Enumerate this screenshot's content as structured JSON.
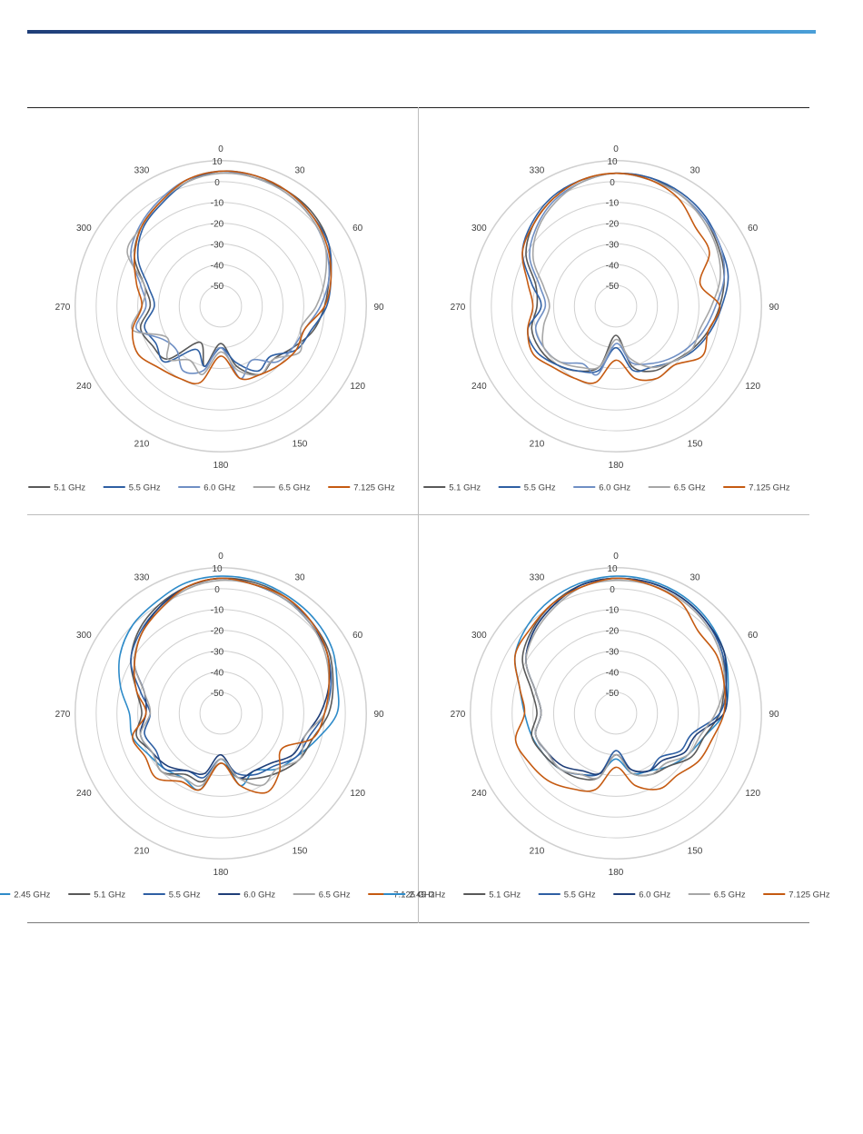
{
  "chart_data": [
    {
      "type": "polar",
      "panel": "top-left",
      "angle_ticks": [
        "0",
        "30",
        "60",
        "90",
        "120",
        "150",
        "180",
        "210",
        "240",
        "270",
        "300",
        "330"
      ],
      "radial_ticks": [
        "10",
        "0",
        "-10",
        "-20",
        "-30",
        "-40",
        "-50"
      ],
      "rlim": [
        -60,
        10
      ],
      "grid": true,
      "legend_position": "bottom",
      "series": [
        {
          "name": "5.1 GHz",
          "color": "#595959",
          "values": [
            5,
            4,
            4,
            3,
            0,
            -6,
            -10,
            -14,
            -20,
            -24,
            -22,
            -30,
            -42,
            -30,
            -40,
            -24,
            -22,
            -20,
            -26,
            -22,
            -12,
            -6,
            -2,
            2
          ]
        },
        {
          "name": "5.5 GHz",
          "color": "#2e5fa3",
          "values": [
            5,
            5,
            4,
            2,
            0,
            -5,
            -9,
            -15,
            -18,
            -26,
            -24,
            -32,
            -40,
            -30,
            -36,
            -22,
            -24,
            -22,
            -28,
            -24,
            -14,
            -7,
            -3,
            2
          ]
        },
        {
          "name": "6.0 GHz",
          "color": "#6f8fc4",
          "values": [
            5,
            4,
            3,
            1,
            -2,
            -6,
            -12,
            -18,
            -20,
            -22,
            -30,
            -24,
            -40,
            -28,
            -24,
            -30,
            -28,
            -18,
            -24,
            -20,
            -10,
            -5,
            -1,
            3
          ]
        },
        {
          "name": "6.5 GHz",
          "color": "#a6a6a6",
          "values": [
            4,
            4,
            3,
            1,
            -2,
            -8,
            -14,
            -20,
            -16,
            -24,
            -22,
            -28,
            -38,
            -26,
            -30,
            -24,
            -30,
            -16,
            -22,
            -22,
            -8,
            -6,
            -2,
            2
          ]
        },
        {
          "name": "7.125 GHz",
          "color": "#c55a11",
          "values": [
            5,
            5,
            4,
            2,
            -1,
            -5,
            -10,
            -18,
            -18,
            -20,
            -22,
            -24,
            -36,
            -22,
            -20,
            -18,
            -14,
            -16,
            -22,
            -18,
            -12,
            -6,
            -2,
            3
          ]
        }
      ]
    },
    {
      "type": "polar",
      "panel": "top-right",
      "angle_ticks": [
        "0",
        "30",
        "60",
        "90",
        "120",
        "150",
        "180",
        "210",
        "240",
        "270",
        "300",
        "330"
      ],
      "radial_ticks": [
        "10",
        "0",
        "-10",
        "-20",
        "-30",
        "-40",
        "-50"
      ],
      "rlim": [
        -60,
        10
      ],
      "grid": true,
      "legend_position": "bottom",
      "series": [
        {
          "name": "5.1 GHz",
          "color": "#595959",
          "values": [
            4,
            4,
            2,
            0,
            -3,
            -6,
            -10,
            -14,
            -18,
            -22,
            -24,
            -30,
            -46,
            -30,
            -24,
            -20,
            -18,
            -18,
            -22,
            -20,
            -10,
            -4,
            0,
            3
          ]
        },
        {
          "name": "5.5 GHz",
          "color": "#2e5fa3",
          "values": [
            4,
            4,
            3,
            1,
            -2,
            -4,
            -9,
            -13,
            -17,
            -22,
            -26,
            -28,
            -40,
            -28,
            -24,
            -20,
            -16,
            -16,
            -24,
            -18,
            -8,
            -3,
            1,
            3
          ]
        },
        {
          "name": "6.0 GHz",
          "color": "#6f8fc4",
          "values": [
            4,
            3,
            2,
            0,
            -2,
            -6,
            -12,
            -16,
            -20,
            -24,
            -28,
            -32,
            -42,
            -26,
            -28,
            -22,
            -20,
            -20,
            -26,
            -22,
            -12,
            -6,
            -1,
            2
          ]
        },
        {
          "name": "6.5 GHz",
          "color": "#a6a6a6",
          "values": [
            4,
            3,
            2,
            -1,
            -4,
            -8,
            -14,
            -18,
            -18,
            -22,
            -26,
            -34,
            -44,
            -30,
            -26,
            -22,
            -20,
            -24,
            -28,
            -24,
            -14,
            -7,
            -2,
            2
          ]
        },
        {
          "name": "7.125 GHz",
          "color": "#c55a11",
          "values": [
            4,
            3,
            0,
            -6,
            -8,
            -18,
            -10,
            -14,
            -12,
            -20,
            -20,
            -24,
            -34,
            -22,
            -20,
            -18,
            -14,
            -16,
            -20,
            -16,
            -8,
            -4,
            0,
            3
          ]
        }
      ]
    },
    {
      "type": "polar",
      "panel": "bottom-left",
      "angle_ticks": [
        "0",
        "30",
        "60",
        "90",
        "120",
        "150",
        "180",
        "210",
        "240",
        "270",
        "300",
        "330"
      ],
      "radial_ticks": [
        "10",
        "0",
        "-10",
        "-20",
        "-30",
        "-40",
        "-50"
      ],
      "rlim": [
        -60,
        10
      ],
      "grid": true,
      "legend_position": "bottom",
      "series": [
        {
          "name": "2.45 GHz",
          "color": "#2e8bc9",
          "values": [
            6,
            6,
            5,
            4,
            2,
            -2,
            -4,
            -12,
            -18,
            -22,
            -28,
            -24,
            -38,
            -22,
            -24,
            -22,
            -20,
            -16,
            -16,
            -10,
            -4,
            0,
            2,
            5
          ]
        },
        {
          "name": "5.1 GHz",
          "color": "#595959",
          "values": [
            5,
            5,
            4,
            2,
            0,
            -4,
            -8,
            -14,
            -16,
            -20,
            -24,
            -28,
            -36,
            -26,
            -26,
            -20,
            -22,
            -18,
            -22,
            -18,
            -10,
            -4,
            0,
            3
          ]
        },
        {
          "name": "5.5 GHz",
          "color": "#2e5fa3",
          "values": [
            5,
            4,
            3,
            2,
            -1,
            -5,
            -10,
            -16,
            -18,
            -24,
            -26,
            -30,
            -38,
            -28,
            -28,
            -22,
            -24,
            -22,
            -26,
            -20,
            -10,
            -5,
            -1,
            3
          ]
        },
        {
          "name": "6.0 GHz",
          "color": "#1f3e78",
          "values": [
            5,
            4,
            3,
            1,
            -1,
            -6,
            -12,
            -18,
            -20,
            -26,
            -28,
            -28,
            -40,
            -30,
            -28,
            -24,
            -22,
            -20,
            -24,
            -22,
            -12,
            -6,
            -1,
            3
          ]
        },
        {
          "name": "6.5 GHz",
          "color": "#a6a6a6",
          "values": [
            4,
            4,
            3,
            1,
            -2,
            -6,
            -10,
            -18,
            -16,
            -22,
            -20,
            -28,
            -38,
            -24,
            -24,
            -20,
            -22,
            -20,
            -26,
            -22,
            -12,
            -6,
            -2,
            2
          ]
        },
        {
          "name": "7.125 GHz",
          "color": "#c55a11",
          "values": [
            5,
            4,
            4,
            2,
            -1,
            -6,
            -10,
            -14,
            -26,
            -20,
            -16,
            -24,
            -36,
            -22,
            -22,
            -16,
            -18,
            -16,
            -24,
            -18,
            -12,
            -6,
            -2,
            3
          ]
        }
      ]
    },
    {
      "type": "polar",
      "panel": "bottom-right",
      "angle_ticks": [
        "0",
        "30",
        "60",
        "90",
        "120",
        "150",
        "180",
        "210",
        "240",
        "270",
        "300",
        "330"
      ],
      "radial_ticks": [
        "10",
        "0",
        "-10",
        "-20",
        "-30",
        "-40",
        "-50"
      ],
      "rlim": [
        -60,
        10
      ],
      "grid": true,
      "legend_position": "bottom",
      "series": [
        {
          "name": "2.45 GHz",
          "color": "#2e8bc9",
          "values": [
            6,
            6,
            5,
            3,
            0,
            -4,
            -8,
            -16,
            -20,
            -24,
            -28,
            -30,
            -38,
            -30,
            -26,
            -22,
            -20,
            -18,
            -16,
            -12,
            -4,
            0,
            3,
            5
          ]
        },
        {
          "name": "5.1 GHz",
          "color": "#595959",
          "values": [
            5,
            5,
            4,
            2,
            -1,
            -6,
            -10,
            -16,
            -18,
            -24,
            -26,
            -30,
            -40,
            -28,
            -24,
            -22,
            -20,
            -18,
            -22,
            -18,
            -8,
            -3,
            1,
            4
          ]
        },
        {
          "name": "5.5 GHz",
          "color": "#2e5fa3",
          "values": [
            5,
            5,
            4,
            2,
            -1,
            -5,
            -10,
            -22,
            -24,
            -30,
            -28,
            -32,
            -42,
            -30,
            -26,
            -22,
            -22,
            -20,
            -24,
            -20,
            -10,
            -4,
            0,
            4
          ]
        },
        {
          "name": "6.0 GHz",
          "color": "#1f3e78",
          "values": [
            5,
            5,
            4,
            2,
            0,
            -5,
            -8,
            -20,
            -22,
            -28,
            -28,
            -32,
            -40,
            -30,
            -28,
            -24,
            -22,
            -20,
            -24,
            -20,
            -10,
            -4,
            0,
            4
          ]
        },
        {
          "name": "6.5 GHz",
          "color": "#a6a6a6",
          "values": [
            4,
            4,
            3,
            1,
            -2,
            -6,
            -12,
            -18,
            -20,
            -26,
            -26,
            -30,
            -40,
            -28,
            -26,
            -22,
            -22,
            -20,
            -24,
            -20,
            -10,
            -5,
            -1,
            3
          ]
        },
        {
          "name": "7.125 GHz",
          "color": "#c55a11",
          "values": [
            5,
            4,
            2,
            -4,
            -4,
            -6,
            -8,
            -12,
            -14,
            -18,
            -18,
            -24,
            -34,
            -22,
            -18,
            -14,
            -12,
            -10,
            -16,
            -12,
            -4,
            -2,
            1,
            3
          ]
        }
      ]
    }
  ]
}
